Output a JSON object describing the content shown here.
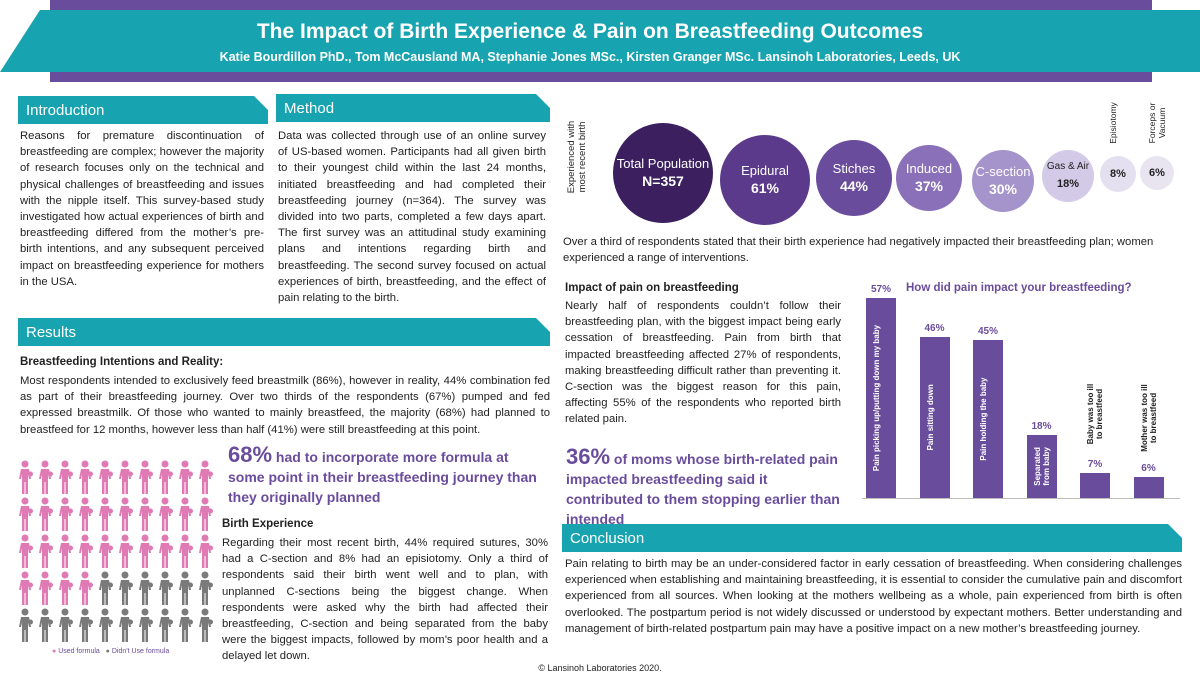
{
  "header": {
    "title": "The Impact of Birth Experience & Pain on Breastfeeding Outcomes",
    "authors": "Katie Bourdillon PhD., Tom McCausland MA, Stephanie Jones MSc., Kirsten Granger MSc. Lansinoh Laboratories, Leeds, UK"
  },
  "introduction": {
    "heading": "Introduction",
    "text": "Reasons for premature discontinuation of breastfeeding are complex; however the majority of research focuses only on the technical and physical challenges of breastfeeding and issues with the nipple itself. This survey-based study investigated how actual experiences of birth and breastfeeding differed from the mother’s pre-birth intentions, and any subsequent perceived impact on breastfeeding experience for mothers in the USA."
  },
  "method": {
    "heading": "Method",
    "text": "Data was collected through use of an online survey of US-based women. Participants had all given birth to their youngest child within the last 24 months, initiated breastfeeding and had completed their breastfeeding journey (n=364). The survey was divided into two parts, completed a few days apart. The first survey was an attitudinal study examining plans and intentions regarding birth and breastfeeding. The second survey focused on actual experiences of birth, breastfeeding, and the effect of pain relating to the birth."
  },
  "results": {
    "heading": "Results",
    "intentions_heading": "Breastfeeding Intentions and Reality:",
    "intentions_text": "Most respondents intended to exclusively feed breastmilk (86%), however in reality, 44% combination fed as part of their breastfeeding journey. Over two thirds of the respondents (67%) pumped and fed expressed breastmilk. Of those who wanted to mainly breastfeed, the majority (68%) had planned to breastfeed for 12 months, however less than half (41%) were still breastfeeding at this point.",
    "stat1_num": "68%",
    "stat1_text": " had to incorporate more formula at some point in their breastfeeding journey than they originally planned",
    "pictogram": {
      "used_label": "Used formula",
      "not_used_label": "Didn't Use formula",
      "used_fraction": 0.68,
      "used_color": "#e07ab4",
      "not_used_color": "#7a7a7a"
    },
    "birth_heading": "Birth Experience",
    "birth_text": "Regarding their most recent birth, 44% required sutures, 30% had a C-section and 8% had an episiotomy. Only a third of respondents said their birth went well and to plan, with unplanned C-sections being the biggest change. When respondents were asked why the birth had affected their breastfeeding, C-section and being separated from the baby were the biggest impacts, followed by mom’s poor health and a delayed let down."
  },
  "circles": {
    "side_label": "Experienced with most recent birth",
    "items": [
      {
        "label": "Total Population",
        "value": "N=357",
        "color": "#3b1f5e"
      },
      {
        "label": "Epidural",
        "value": "61%",
        "color": "#5b3a8c"
      },
      {
        "label": "Stiches",
        "value": "44%",
        "color": "#6a4c9c"
      },
      {
        "label": "Induced",
        "value": "37%",
        "color": "#8a70b8"
      },
      {
        "label": "C-section",
        "value": "30%",
        "color": "#a593cc"
      },
      {
        "label": "Gas & Air",
        "value": "18%",
        "color": "#d2cae6"
      },
      {
        "label": "Episiotomy",
        "value": "8%",
        "color": "#e4e0f0"
      },
      {
        "label": "Forceps or Vacuum",
        "value": "6%",
        "color": "#e8e5f1"
      }
    ],
    "caption": "Over a third of respondents stated that their birth experience had negatively impacted their breastfeeding plan; women experienced a range of interventions."
  },
  "pain": {
    "heading": "Impact of pain on breastfeeding",
    "text": "Nearly half of respondents couldn’t follow their breastfeeding plan, with the biggest impact being early cessation of breastfeeding. Pain from birth that impacted breastfeeding affected 27% of respondents, making breastfeeding difficult rather than preventing it. C-section was the biggest reason for this pain, affecting 55% of the respondents who reported birth related pain.",
    "stat2_num": "36%",
    "stat2_text": " of moms whose birth-related pain impacted breastfeeding said it contributed to them stopping earlier than intended"
  },
  "chart_data": {
    "type": "bar",
    "title": "How did pain impact your breastfeeding?",
    "categories": [
      "Pain picking up/putting down my baby",
      "Pain sitting down",
      "Pain holding the baby",
      "Separated from baby",
      "Baby was too ill to breastfeed",
      "Mother was too ill to breastfeed"
    ],
    "values": [
      57,
      46,
      45,
      18,
      7,
      6
    ],
    "value_labels": [
      "57%",
      "46%",
      "45%",
      "18%",
      "7%",
      "6%"
    ],
    "ylim": [
      0,
      57
    ],
    "color": "#6a4c9c"
  },
  "conclusion": {
    "heading": "Conclusion",
    "text": "Pain relating to birth may be an under-considered factor in early cessation of breastfeeding. When considering challenges experienced when establishing and maintaining breastfeeding, it is essential to consider the cumulative pain and discomfort experienced from all sources. When looking at the mothers wellbeing as a whole, pain experienced from birth is often overlooked. The postpartum period is not widely discussed or understood by expectant mothers. Better understanding and management of birth-related postpartum pain may have a positive impact on a new mother’s breastfeeding journey."
  },
  "footer": "© Lansinoh Laboratories 2020."
}
